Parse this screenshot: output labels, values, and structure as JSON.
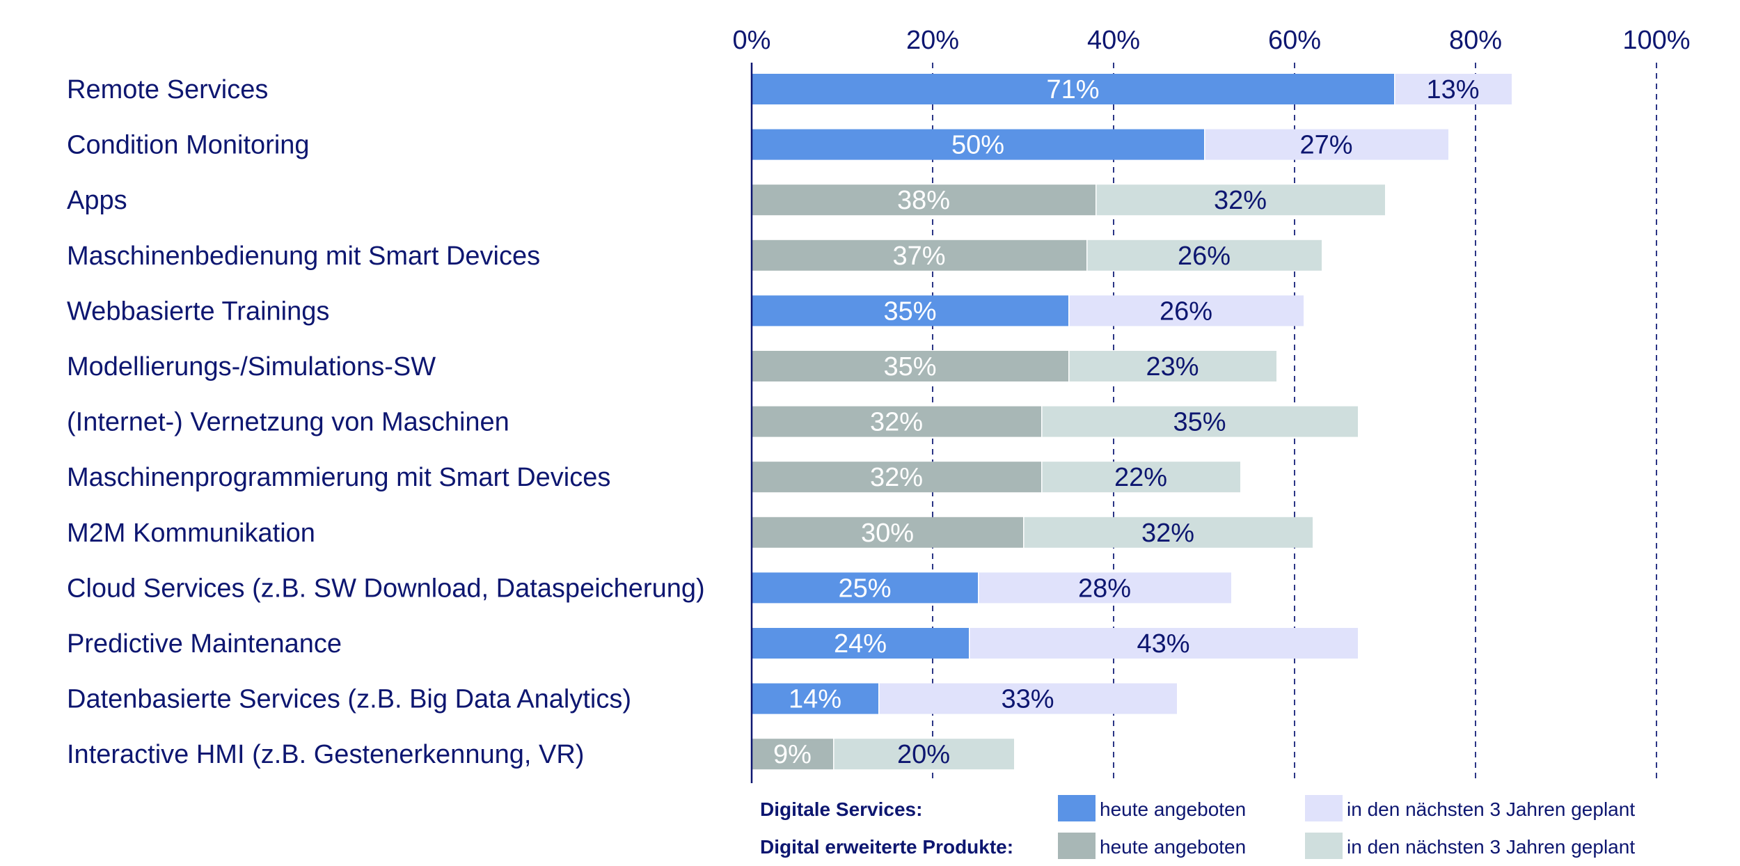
{
  "chart_data": {
    "type": "bar",
    "orientation": "horizontal",
    "stacked": true,
    "title": "",
    "xlabel": "",
    "ylabel": "",
    "xlim": [
      0,
      100
    ],
    "x_ticks": [
      "0%",
      "20%",
      "40%",
      "60%",
      "80%",
      "100%"
    ],
    "x_tick_values": [
      0,
      20,
      40,
      60,
      80,
      100
    ],
    "grid": "vertical dashed",
    "legend_placement": "bottom",
    "categories": [
      "Remote Services",
      "Condition Monitoring",
      "Apps",
      "Maschinenbedienung mit Smart Devices",
      "Webbasierte Trainings",
      "Modellierungs-/Simulations-SW",
      "(Internet-) Vernetzung von Maschinen",
      "Maschinenprogrammierung mit Smart Devices",
      "M2M Kommunikation",
      "Cloud Services (z.B. SW Download, Dataspeicherung)",
      "Predictive Maintenance",
      "Datenbasierte Services (z.B. Big Data Analytics)",
      "Interactive HMI (z.B. Gestenerkennung, VR)"
    ],
    "group": [
      "service",
      "service",
      "product",
      "product",
      "service",
      "product",
      "product",
      "product",
      "product",
      "service",
      "service",
      "service",
      "product"
    ],
    "series": [
      {
        "name": "heute angeboten",
        "values": [
          71,
          50,
          38,
          37,
          35,
          35,
          32,
          32,
          30,
          25,
          24,
          14,
          9
        ]
      },
      {
        "name": "in den nächsten 3 Jahren geplant",
        "values": [
          13,
          27,
          32,
          26,
          26,
          23,
          35,
          22,
          32,
          28,
          43,
          33,
          20
        ]
      }
    ],
    "value_format": "{v}%",
    "legend": [
      {
        "group_title": "Digitale Services:",
        "group": "service",
        "entries": [
          {
            "label": "heute angeboten",
            "color": "#5a93e6"
          },
          {
            "label": "in den nächsten 3 Jahren geplant",
            "color": "#e0e2fb"
          }
        ]
      },
      {
        "group_title": "Digital erweiterte Produkte:",
        "group": "product",
        "entries": [
          {
            "label": "heute angeboten",
            "color": "#a8b7b6"
          },
          {
            "label": "in den nächsten 3 Jahren geplant",
            "color": "#cfdedd"
          }
        ]
      }
    ]
  },
  "colors": {
    "service_today": "#5a93e6",
    "service_planned": "#e0e2fb",
    "product_today": "#a8b7b6",
    "product_planned": "#cfdedd",
    "text": "#0d1670",
    "grid": "#2b3585"
  }
}
